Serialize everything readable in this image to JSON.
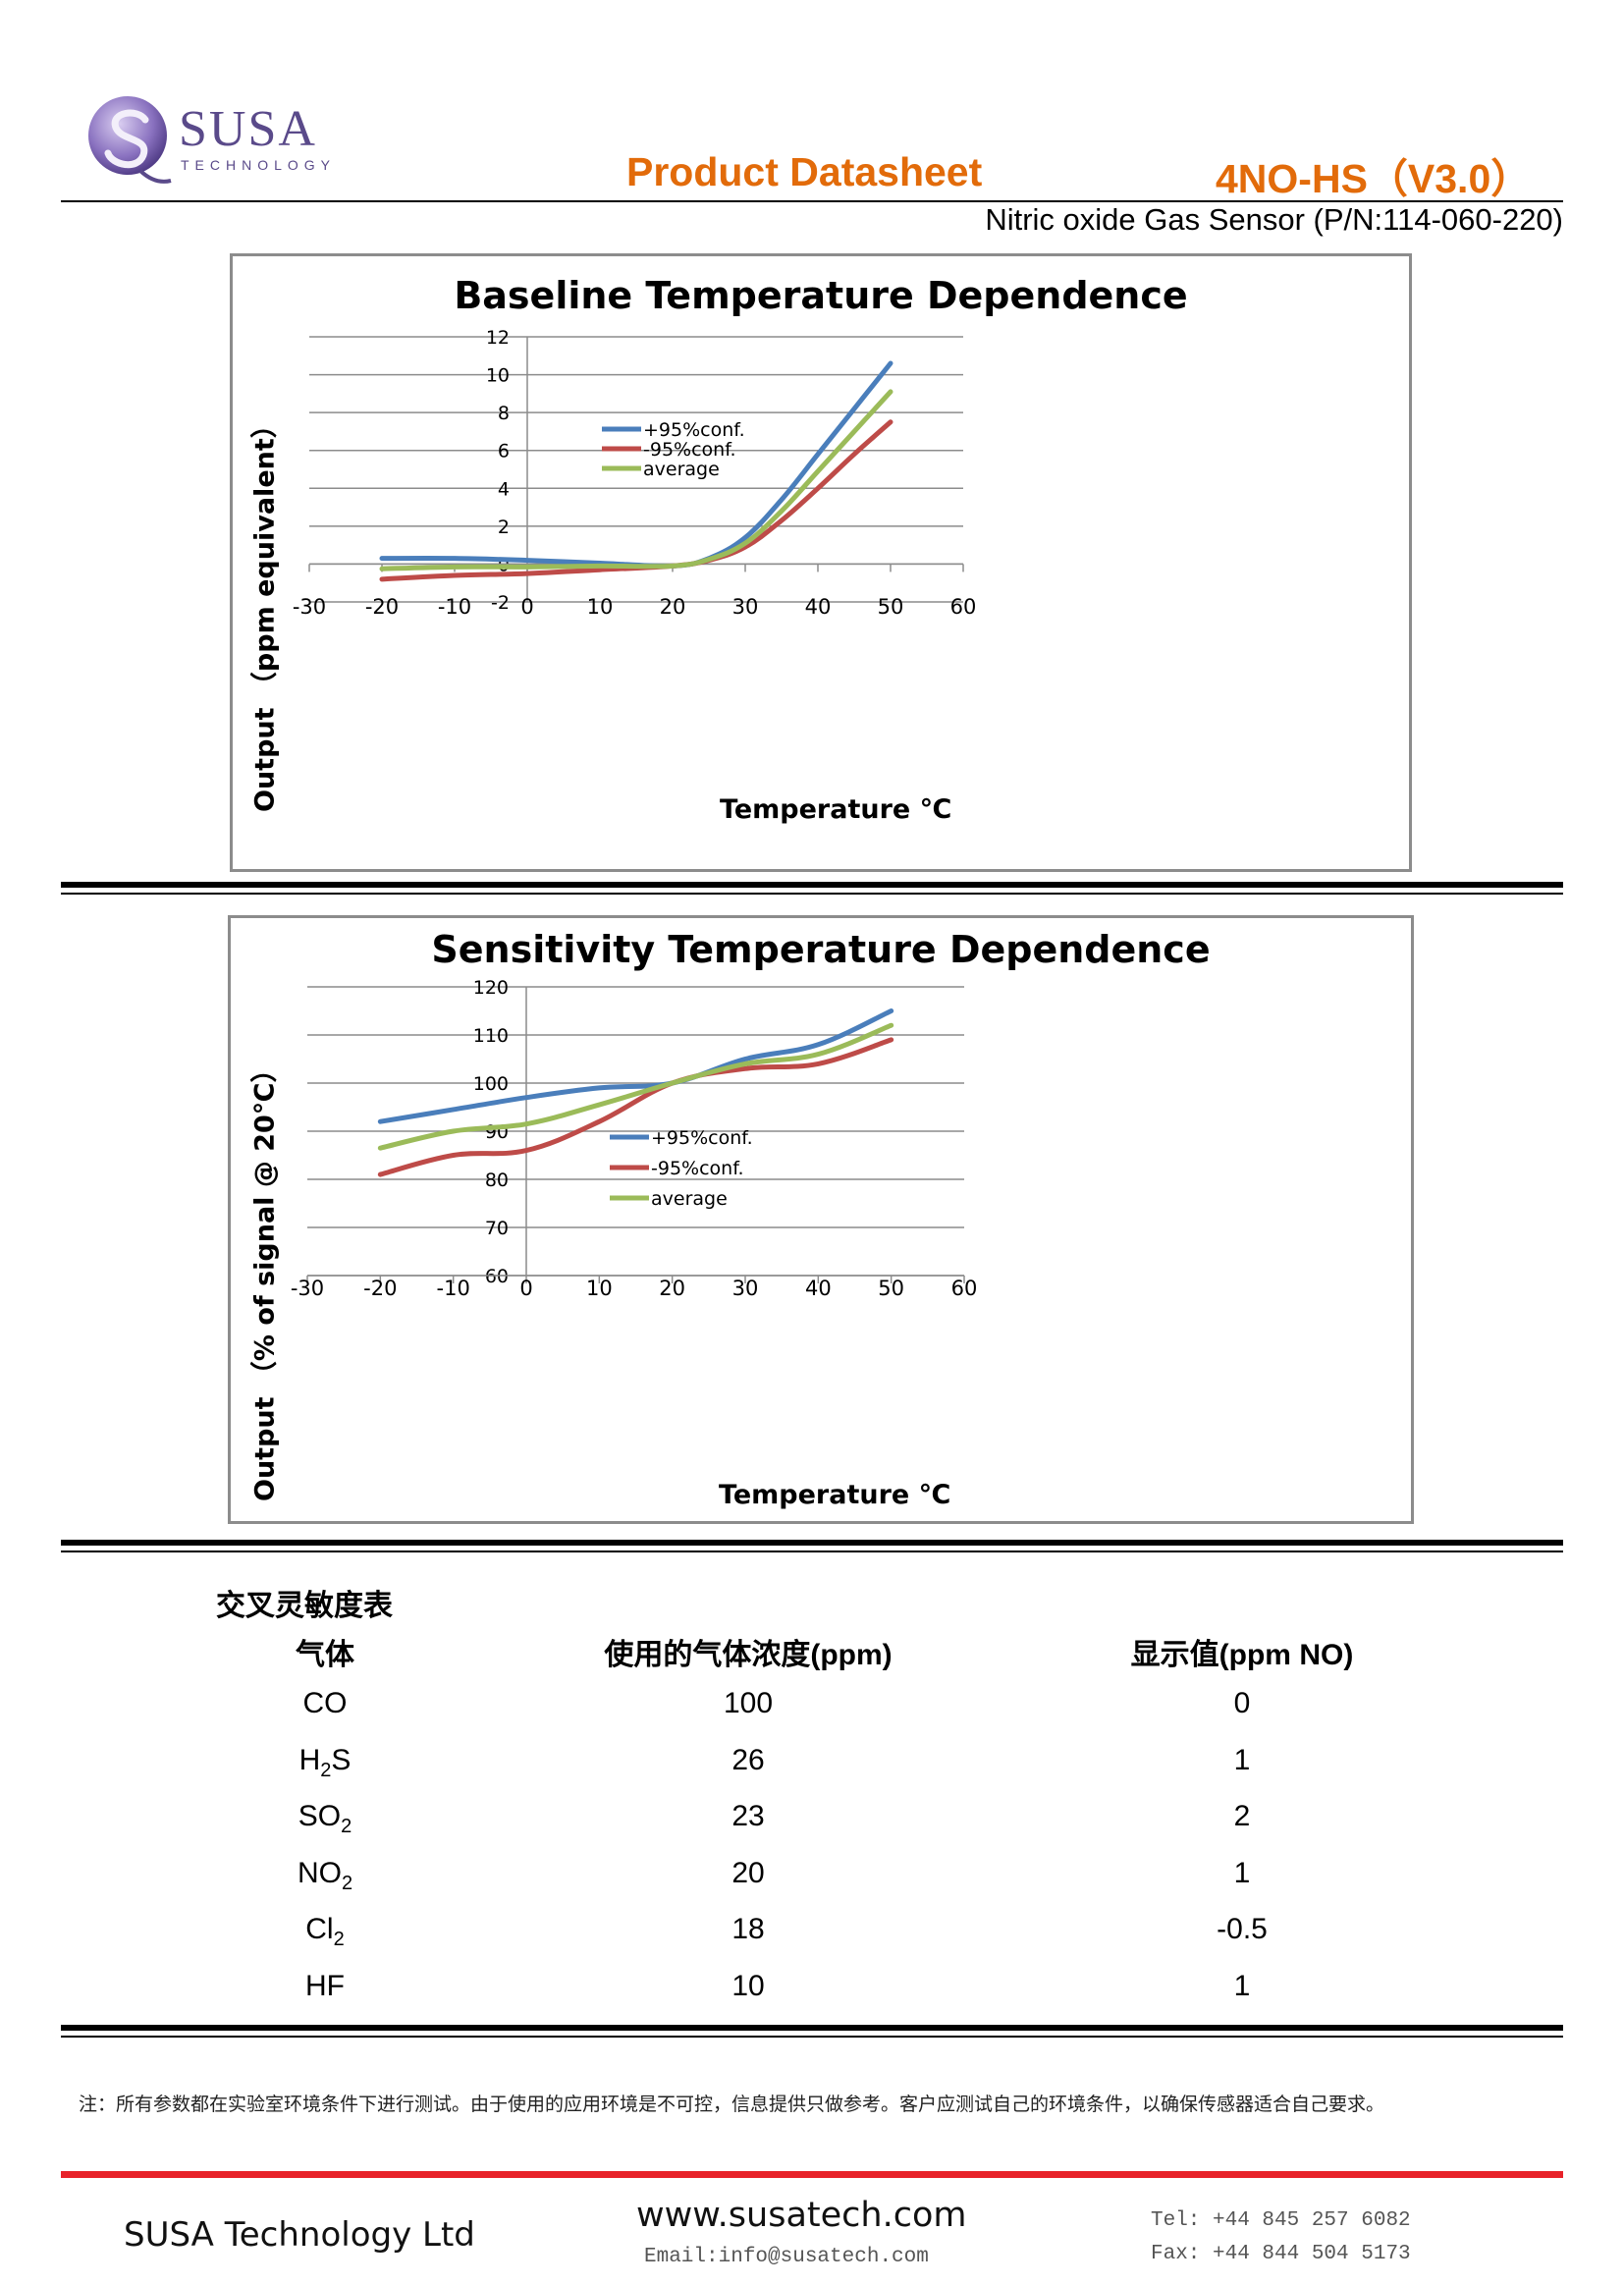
{
  "header": {
    "logo_main": "SUSA",
    "logo_sub": "TECHNOLOGY",
    "doc_type": "Product Datasheet",
    "model": "4NO-HS（V3.0）",
    "subtitle": "Nitric oxide Gas Sensor (P/N:114-060-220)"
  },
  "charts": {
    "baseline": {
      "title": "Baseline Temperature Dependence",
      "xlabel": "Temperature ℃",
      "ylabel": "Output （ppm equivalent）"
    },
    "sensitivity": {
      "title": "Sensitivity Temperature Dependence",
      "xlabel": "Temperature ℃",
      "ylabel": "Output （% of signal @ 20℃）"
    }
  },
  "chart_data": [
    {
      "type": "line",
      "title": "Baseline Temperature Dependence",
      "xlabel": "Temperature ℃",
      "ylabel": "Output （ppm equivalent）",
      "xlim": [
        -30,
        60
      ],
      "ylim": [
        -2,
        12
      ],
      "xticks": [
        -30,
        -20,
        -10,
        0,
        10,
        20,
        30,
        40,
        50,
        60
      ],
      "yticks": [
        -2,
        0,
        2,
        4,
        6,
        8,
        10,
        12
      ],
      "grid": true,
      "legend": "center",
      "series": [
        {
          "name": "+95%conf.",
          "color": "#4a7ebb",
          "x": [
            -20,
            -10,
            0,
            10,
            20,
            25,
            30,
            35,
            40,
            45,
            50
          ],
          "y": [
            0.3,
            0.3,
            0.2,
            0.05,
            -0.1,
            0.3,
            1.4,
            3.4,
            5.8,
            8.2,
            10.6
          ]
        },
        {
          "name": "-95%conf.",
          "color": "#be4b48",
          "x": [
            -20,
            -10,
            0,
            10,
            20,
            25,
            30,
            35,
            40,
            45,
            50
          ],
          "y": [
            -0.8,
            -0.6,
            -0.5,
            -0.3,
            -0.1,
            0.2,
            0.9,
            2.3,
            4.0,
            5.8,
            7.5
          ]
        },
        {
          "name": "average",
          "color": "#9bbb59",
          "x": [
            -20,
            -10,
            0,
            10,
            20,
            25,
            30,
            35,
            40,
            45,
            50
          ],
          "y": [
            -0.25,
            -0.15,
            -0.15,
            -0.1,
            -0.1,
            0.25,
            1.1,
            2.8,
            4.9,
            7.0,
            9.1
          ]
        }
      ]
    },
    {
      "type": "line",
      "title": "Sensitivity Temperature Dependence",
      "xlabel": "Temperature ℃",
      "ylabel": "Output （% of signal @ 20℃）",
      "xlim": [
        -30,
        60
      ],
      "ylim": [
        60,
        120
      ],
      "xticks": [
        -30,
        -20,
        -10,
        0,
        10,
        20,
        30,
        40,
        50,
        60
      ],
      "yticks": [
        60,
        70,
        80,
        90,
        100,
        110,
        120
      ],
      "grid": true,
      "legend": "center",
      "series": [
        {
          "name": "+95%conf.",
          "color": "#4a7ebb",
          "x": [
            -20,
            -10,
            0,
            10,
            20,
            30,
            40,
            50
          ],
          "y": [
            92,
            94.5,
            97,
            99,
            100,
            105,
            108,
            115
          ]
        },
        {
          "name": "-95%conf.",
          "color": "#be4b48",
          "x": [
            -20,
            -10,
            0,
            10,
            20,
            30,
            40,
            50
          ],
          "y": [
            81,
            85,
            86,
            92,
            100,
            103,
            104,
            109
          ]
        },
        {
          "name": "average",
          "color": "#9bbb59",
          "x": [
            -20,
            -10,
            0,
            10,
            20,
            30,
            40,
            50
          ],
          "y": [
            86.5,
            90,
            91.5,
            95.5,
            100,
            104,
            106,
            112
          ]
        }
      ]
    }
  ],
  "cross_sensitivity": {
    "title": "交叉灵敏度表",
    "headers": [
      "气体",
      "使用的气体浓度(ppm)",
      "显示值(ppm NO)"
    ],
    "rows": [
      {
        "gas": "CO",
        "sub": "",
        "suffix": "",
        "conc": "100",
        "reading": "0"
      },
      {
        "gas": "H",
        "sub": "2",
        "suffix": "S",
        "conc": "26",
        "reading": "1"
      },
      {
        "gas": "SO",
        "sub": "2",
        "suffix": "",
        "conc": "23",
        "reading": "2"
      },
      {
        "gas": "NO",
        "sub": "2",
        "suffix": "",
        "conc": "20",
        "reading": "1"
      },
      {
        "gas": "Cl",
        "sub": "2",
        "suffix": "",
        "conc": "18",
        "reading": "-0.5"
      },
      {
        "gas": "HF",
        "sub": "",
        "suffix": "",
        "conc": "10",
        "reading": "1"
      }
    ]
  },
  "note": "注：所有参数都在实验室环境条件下进行测试。由于使用的应用环境是不可控，信息提供只做参考。客户应测试自己的环境条件，以确保传感器适合自己要求。",
  "footer": {
    "company": "SUSA Technology Ltd",
    "website": "www.susatech.com",
    "email": "Email:info@susatech.com",
    "tel": "Tel: +44 845 257 6082",
    "fax": "Fax: +44 844 504 5173",
    "accent_color": "#e8222a"
  }
}
